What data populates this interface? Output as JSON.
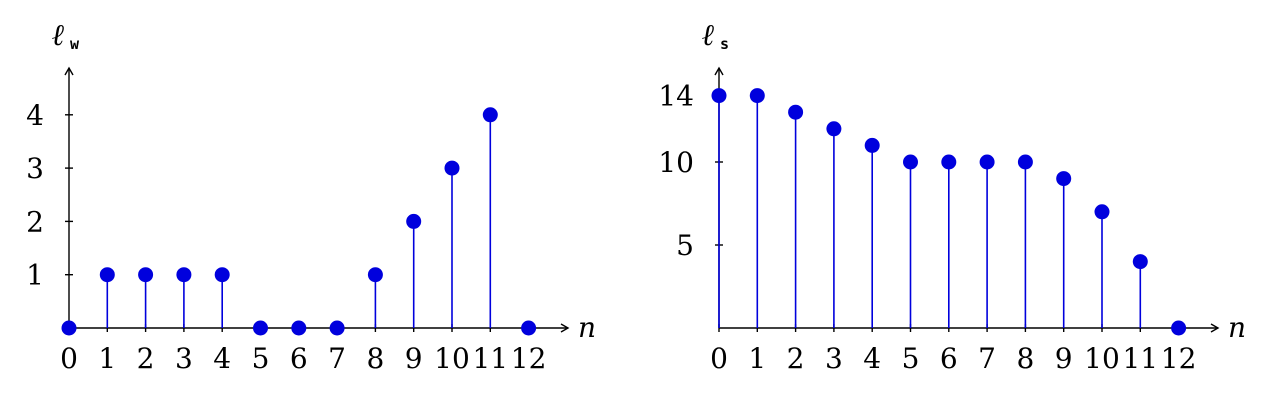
{
  "chart_data": [
    {
      "type": "stem",
      "ylabel": {
        "main": "ℓ",
        "sub": "w"
      },
      "xlabel": "n",
      "x": [
        0,
        1,
        2,
        3,
        4,
        5,
        6,
        7,
        8,
        9,
        10,
        11,
        12
      ],
      "values": [
        0,
        1,
        1,
        1,
        1,
        0,
        0,
        0,
        1,
        2,
        3,
        4,
        0
      ],
      "xticks": [
        "0",
        "1",
        "2",
        "3",
        "4",
        "5",
        "6",
        "7",
        "8",
        "9",
        "10",
        "11",
        "12"
      ],
      "yticks": [
        1,
        2,
        3,
        4
      ],
      "ylim": [
        0,
        4.5
      ],
      "color": "#0000dd"
    },
    {
      "type": "stem",
      "ylabel": {
        "main": "ℓ",
        "sub": "s"
      },
      "xlabel": "n",
      "x": [
        0,
        1,
        2,
        3,
        4,
        5,
        6,
        7,
        8,
        9,
        10,
        11,
        12
      ],
      "values": [
        14,
        14,
        13,
        12,
        11,
        10,
        10,
        10,
        10,
        9,
        7,
        4,
        0
      ],
      "xticks": [
        "0",
        "1",
        "2",
        "3",
        "4",
        "5",
        "6",
        "7",
        "8",
        "9",
        "10",
        "11",
        "12"
      ],
      "yticks": [
        5,
        10,
        14
      ],
      "ylim": [
        0,
        15.5
      ],
      "color": "#0000dd"
    }
  ]
}
